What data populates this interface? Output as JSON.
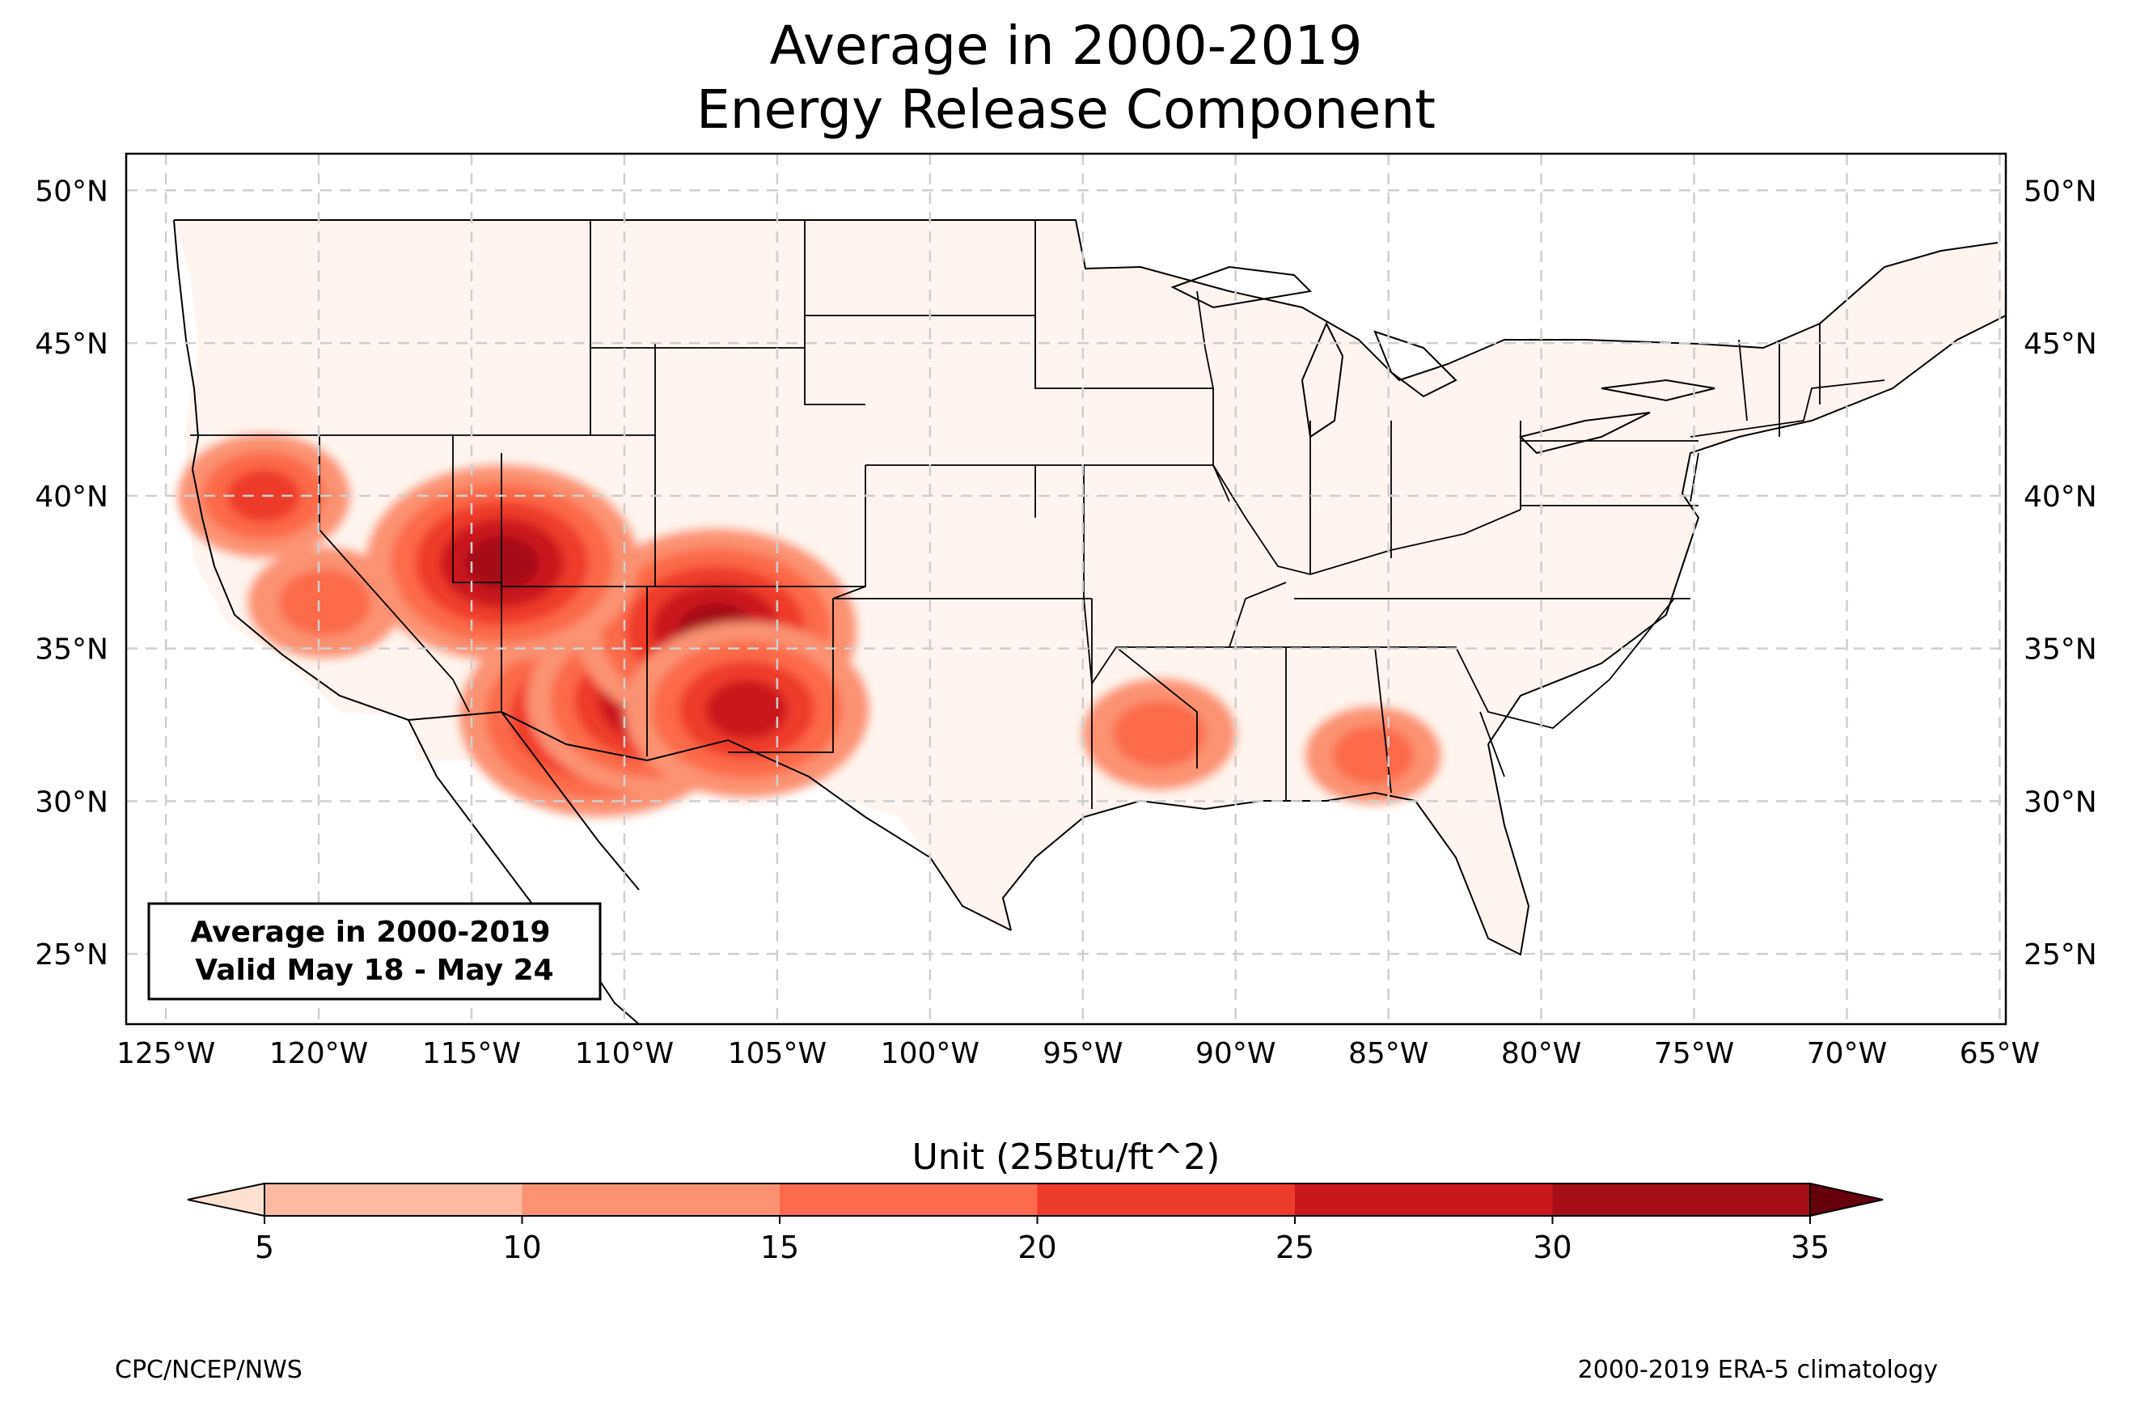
{
  "title": {
    "line1": "Average in 2000-2019",
    "line2": "Energy Release Component"
  },
  "map": {
    "lon_ticks": [
      "125°W",
      "120°W",
      "115°W",
      "110°W",
      "105°W",
      "100°W",
      "95°W",
      "90°W",
      "85°W",
      "80°W",
      "75°W",
      "70°W",
      "65°W"
    ],
    "lat_ticks": [
      "50°N",
      "45°N",
      "40°N",
      "35°N",
      "30°N",
      "25°N"
    ],
    "info_box": {
      "line1": "Average in 2000-2019",
      "line2": "Valid May 18 - May 24"
    },
    "extent": {
      "lon_min": -126.3,
      "lon_max": -64.8,
      "lat_min": 22.7,
      "lat_max": 51.2
    },
    "hotspots": [
      {
        "region": "southern Arizona",
        "lon": -110.8,
        "lat": 32.8,
        "value": 32
      },
      {
        "region": "southeast Arizona",
        "lon": -108.9,
        "lat": 33.3,
        "value": 30
      },
      {
        "region": "northwest New Mexico",
        "lon": -107.0,
        "lat": 35.6,
        "value": 32
      },
      {
        "region": "central New Mexico",
        "lon": -106.0,
        "lat": 33.0,
        "value": 28
      },
      {
        "region": "southern Nevada / Utah",
        "lon": -114.0,
        "lat": 37.8,
        "value": 31
      },
      {
        "region": "northern California",
        "lon": -121.8,
        "lat": 40.0,
        "value": 20
      },
      {
        "region": "California Central Valley",
        "lon": -119.8,
        "lat": 36.5,
        "value": 18
      },
      {
        "region": "Lower Mississippi Valley",
        "lon": -92.5,
        "lat": 32.2,
        "value": 18
      },
      {
        "region": "Alabama / Georgia",
        "lon": -85.5,
        "lat": 31.5,
        "value": 16
      }
    ]
  },
  "colorbar": {
    "title": "Unit (25Btu/ft^2)",
    "tick_labels": [
      "5",
      "10",
      "15",
      "20",
      "25",
      "30",
      "35"
    ],
    "colors": [
      "#fee0d2",
      "#fcbba1",
      "#fc9272",
      "#fb6a4a",
      "#ef3b2c",
      "#cb181d",
      "#a50f15",
      "#67000d"
    ]
  },
  "footer": {
    "left": "CPC/NCEP/NWS",
    "right": "2000-2019 ERA-5 climatology"
  }
}
